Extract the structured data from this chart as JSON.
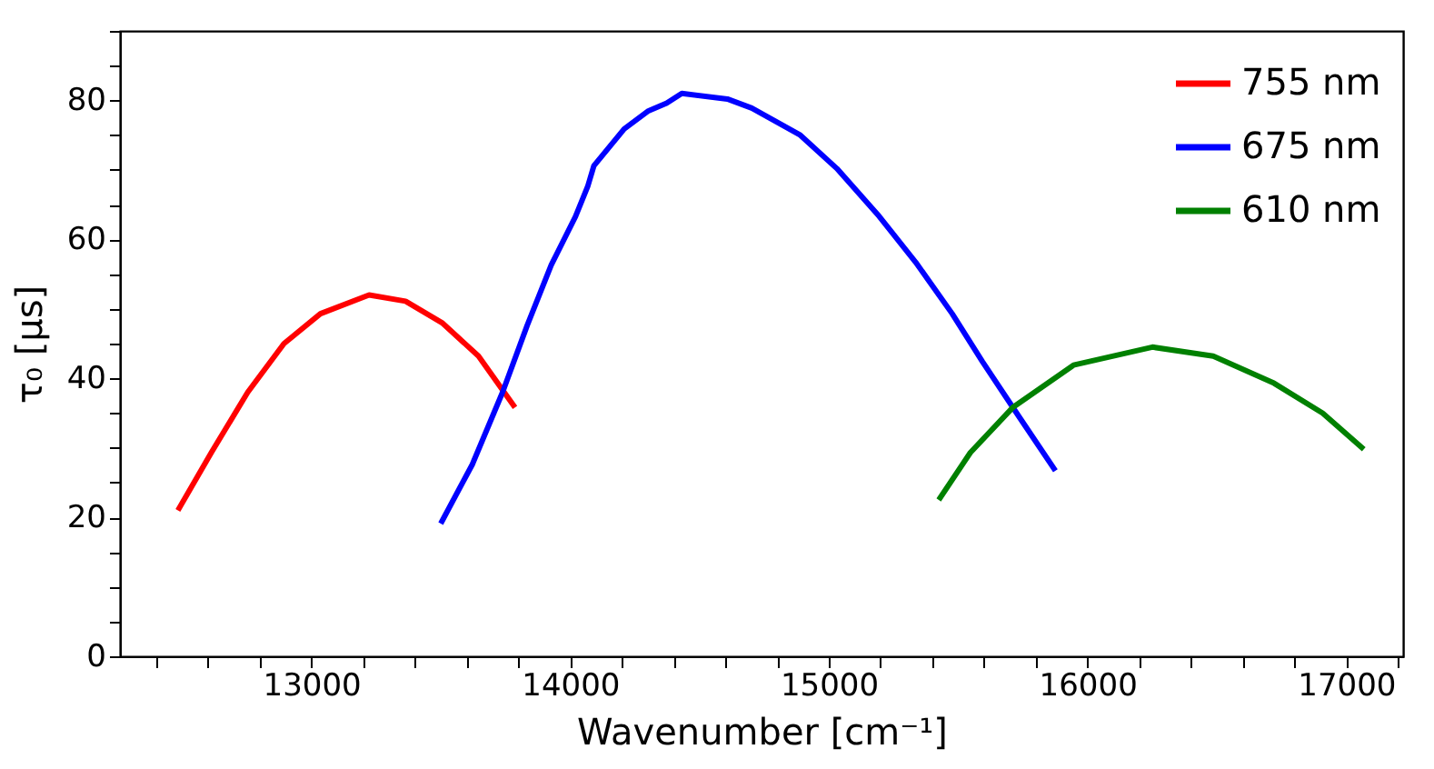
{
  "chart_data": {
    "type": "line",
    "xlabel": "Wavenumber [cm⁻¹]",
    "ylabel": "τ₀ [μs]",
    "xlim": [
      12260,
      17220
    ],
    "xticks": [
      {
        "value": 12400,
        "label": null
      },
      {
        "value": 12600,
        "label": null
      },
      {
        "value": 12800,
        "label": null
      },
      13000,
      {
        "value": 13200,
        "label": null
      },
      {
        "value": 13400,
        "label": null
      },
      {
        "value": 13600,
        "label": null
      },
      {
        "value": 13800,
        "label": null
      },
      14000,
      {
        "value": 14200,
        "label": null
      },
      {
        "value": 14400,
        "label": null
      },
      {
        "value": 14600,
        "label": null
      },
      {
        "value": 14800,
        "label": null
      },
      15000,
      {
        "value": 15200,
        "label": null
      },
      {
        "value": 15400,
        "label": null
      },
      {
        "value": 15600,
        "label": null
      },
      {
        "value": 15800,
        "label": null
      },
      16000,
      {
        "value": 16200,
        "label": null
      },
      {
        "value": 16400,
        "label": null
      },
      {
        "value": 16600,
        "label": null
      },
      {
        "value": 16800,
        "label": null
      },
      17000,
      {
        "value": 17200,
        "label": null
      }
    ],
    "ylim": [
      0,
      90
    ],
    "yticks": [
      0,
      {
        "value": 5,
        "label": null
      },
      {
        "value": 10,
        "label": null
      },
      {
        "value": 15,
        "label": null
      },
      20,
      {
        "value": 25,
        "label": null
      },
      {
        "value": 30,
        "label": null
      },
      {
        "value": 35,
        "label": null
      },
      40,
      {
        "value": 45,
        "label": null
      },
      {
        "value": 50,
        "label": null
      },
      {
        "value": 55,
        "label": null
      },
      60,
      {
        "value": 65,
        "label": null
      },
      {
        "value": 70,
        "label": null
      },
      {
        "value": 75,
        "label": null
      },
      80,
      {
        "value": 85,
        "label": null
      },
      {
        "value": 90,
        "label": null
      }
    ],
    "grid": false,
    "legend": "top right",
    "marker": "none",
    "line_style": "solid",
    "series": [
      {
        "name": "755 nm",
        "color": "#ff0000",
        "x": [
          12484,
          12613,
          12754,
          12894,
          13035,
          13223,
          13364,
          13505,
          13646,
          13787
        ],
        "values": [
          21.0,
          29.3,
          38.0,
          45.0,
          49.3,
          52.0,
          51.1,
          48.0,
          43.2,
          35.8
        ]
      },
      {
        "name": "675 nm",
        "color": "#0000ff",
        "x": [
          13500,
          13622,
          13739,
          13834,
          13927,
          14021,
          14068,
          14092,
          14209,
          14303,
          14373,
          14432,
          14608,
          14702,
          14890,
          15031,
          15195,
          15336,
          15477,
          15594,
          15735,
          15876
        ],
        "values": [
          19.1,
          27.6,
          38.0,
          47.6,
          56.3,
          63.3,
          67.6,
          70.6,
          75.9,
          78.5,
          79.6,
          81.0,
          80.2,
          78.9,
          75.0,
          70.2,
          63.3,
          56.7,
          49.3,
          42.4,
          34.5,
          26.7
        ]
      },
      {
        "name": "610 nm",
        "color": "#008000",
        "x": [
          15425,
          15547,
          15711,
          15946,
          16251,
          16486,
          16721,
          16909,
          17068
        ],
        "values": [
          22.5,
          29.3,
          35.8,
          41.9,
          44.5,
          43.2,
          39.3,
          35.0,
          29.8
        ]
      }
    ]
  }
}
